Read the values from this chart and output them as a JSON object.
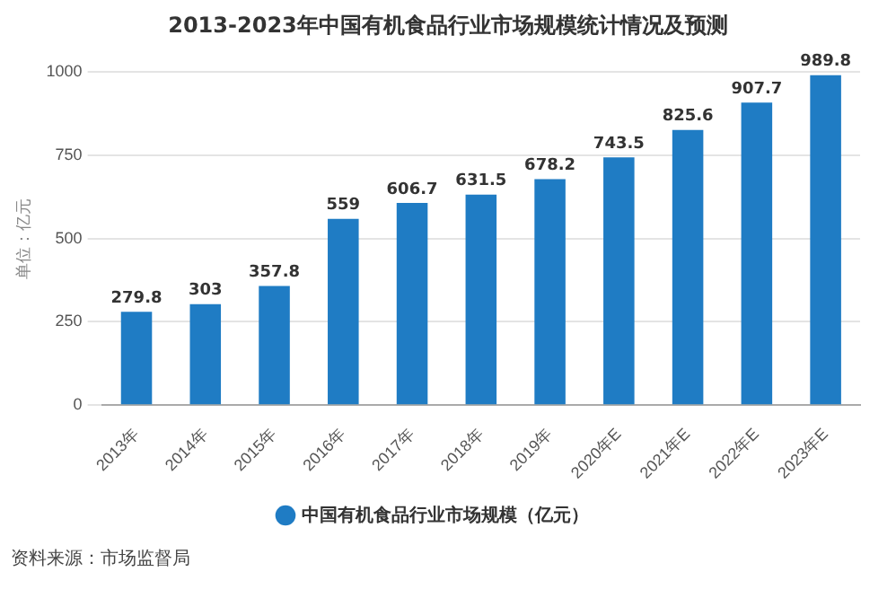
{
  "chart_data": {
    "type": "bar",
    "title": "2013-2023年中国有机食品行业市场规模统计情况及预测",
    "ylabel": "单位：亿元",
    "categories": [
      "2013年",
      "2014年",
      "2015年",
      "2016年",
      "2017年",
      "2018年",
      "2019年",
      "2020年E",
      "2021年E",
      "2022年E",
      "2023年E"
    ],
    "series": [
      {
        "name": "中国有机食品行业市场规模（亿元）",
        "color": "#1f7cc4",
        "values": [
          279.8,
          303,
          357.8,
          559,
          606.7,
          631.5,
          678.2,
          743.5,
          825.6,
          907.7,
          989.8
        ]
      }
    ],
    "ylim": [
      0,
      1000
    ],
    "yticks": [
      0,
      250,
      500,
      750,
      1000
    ],
    "grid": "y",
    "legend": "bottom",
    "marker": "circle",
    "data_labels": true,
    "annotations": [
      "资料来源：市场监督局"
    ]
  }
}
